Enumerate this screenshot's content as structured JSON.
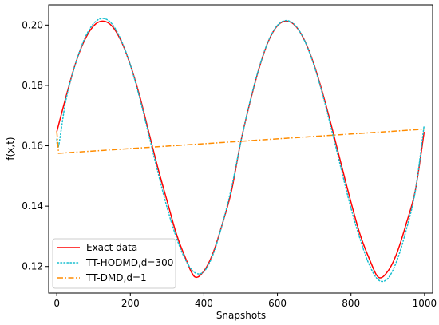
{
  "chart_data": {
    "type": "line",
    "title": "",
    "xlabel": "Snapshots",
    "ylabel": "f(x,t)",
    "xlim": [
      -22,
      1022
    ],
    "ylim": [
      0.1112,
      0.2067
    ],
    "xticks": [
      0,
      200,
      400,
      600,
      800,
      1000
    ],
    "yticks": [
      0.12,
      0.14,
      0.16,
      0.18,
      0.2
    ],
    "grid": false,
    "legend_position": "lower-left",
    "series": [
      {
        "name": "Exact data",
        "color": "#ff0000",
        "style": "solid",
        "width": 1.5,
        "x": [
          0,
          25,
          50,
          75,
          100,
          125,
          150,
          175,
          200,
          225,
          250,
          275,
          300,
          325,
          350,
          375,
          400,
          425,
          450,
          475,
          500,
          525,
          550,
          575,
          600,
          625,
          650,
          675,
          700,
          725,
          750,
          775,
          800,
          825,
          850,
          875,
          900,
          925,
          950,
          975,
          999
        ],
        "y": [
          0.1646,
          0.1762,
          0.1869,
          0.1948,
          0.1997,
          0.2013,
          0.1997,
          0.1947,
          0.1868,
          0.1767,
          0.1646,
          0.1526,
          0.1417,
          0.1309,
          0.1228,
          0.1166,
          0.1185,
          0.1245,
          0.134,
          0.145,
          0.1611,
          0.1742,
          0.1856,
          0.1945,
          0.1998,
          0.2013,
          0.1996,
          0.1946,
          0.1867,
          0.1766,
          0.1651,
          0.1531,
          0.1413,
          0.1305,
          0.1225,
          0.1164,
          0.1184,
          0.1245,
          0.1341,
          0.1452,
          0.1646
        ]
      },
      {
        "name": "TT-HODMD,d=300",
        "color": "#17becf",
        "style": "dotted",
        "width": 1.5,
        "x": [
          0,
          5,
          25,
          50,
          75,
          100,
          125,
          150,
          175,
          200,
          225,
          250,
          275,
          300,
          325,
          350,
          375,
          400,
          425,
          450,
          475,
          500,
          525,
          550,
          575,
          600,
          625,
          650,
          675,
          700,
          725,
          750,
          775,
          800,
          825,
          850,
          875,
          900,
          925,
          950,
          975,
          999
        ],
        "y": [
          0.1622,
          0.16,
          0.1752,
          0.1868,
          0.1953,
          0.2005,
          0.2022,
          0.2004,
          0.195,
          0.1868,
          0.176,
          0.1637,
          0.1512,
          0.1395,
          0.1297,
          0.1222,
          0.118,
          0.1183,
          0.124,
          0.134,
          0.146,
          0.161,
          0.1745,
          0.1858,
          0.1946,
          0.1999,
          0.2015,
          0.1997,
          0.1945,
          0.1864,
          0.176,
          0.164,
          0.1515,
          0.1393,
          0.129,
          0.1205,
          0.1155,
          0.116,
          0.122,
          0.132,
          0.145,
          0.1668
        ]
      },
      {
        "name": "TT-DMD,d=1",
        "color": "#ff8c00",
        "style": "dashdot",
        "width": 1.5,
        "x": [
          0,
          5,
          999
        ],
        "y": [
          0.1648,
          0.1575,
          0.1655
        ]
      }
    ]
  }
}
